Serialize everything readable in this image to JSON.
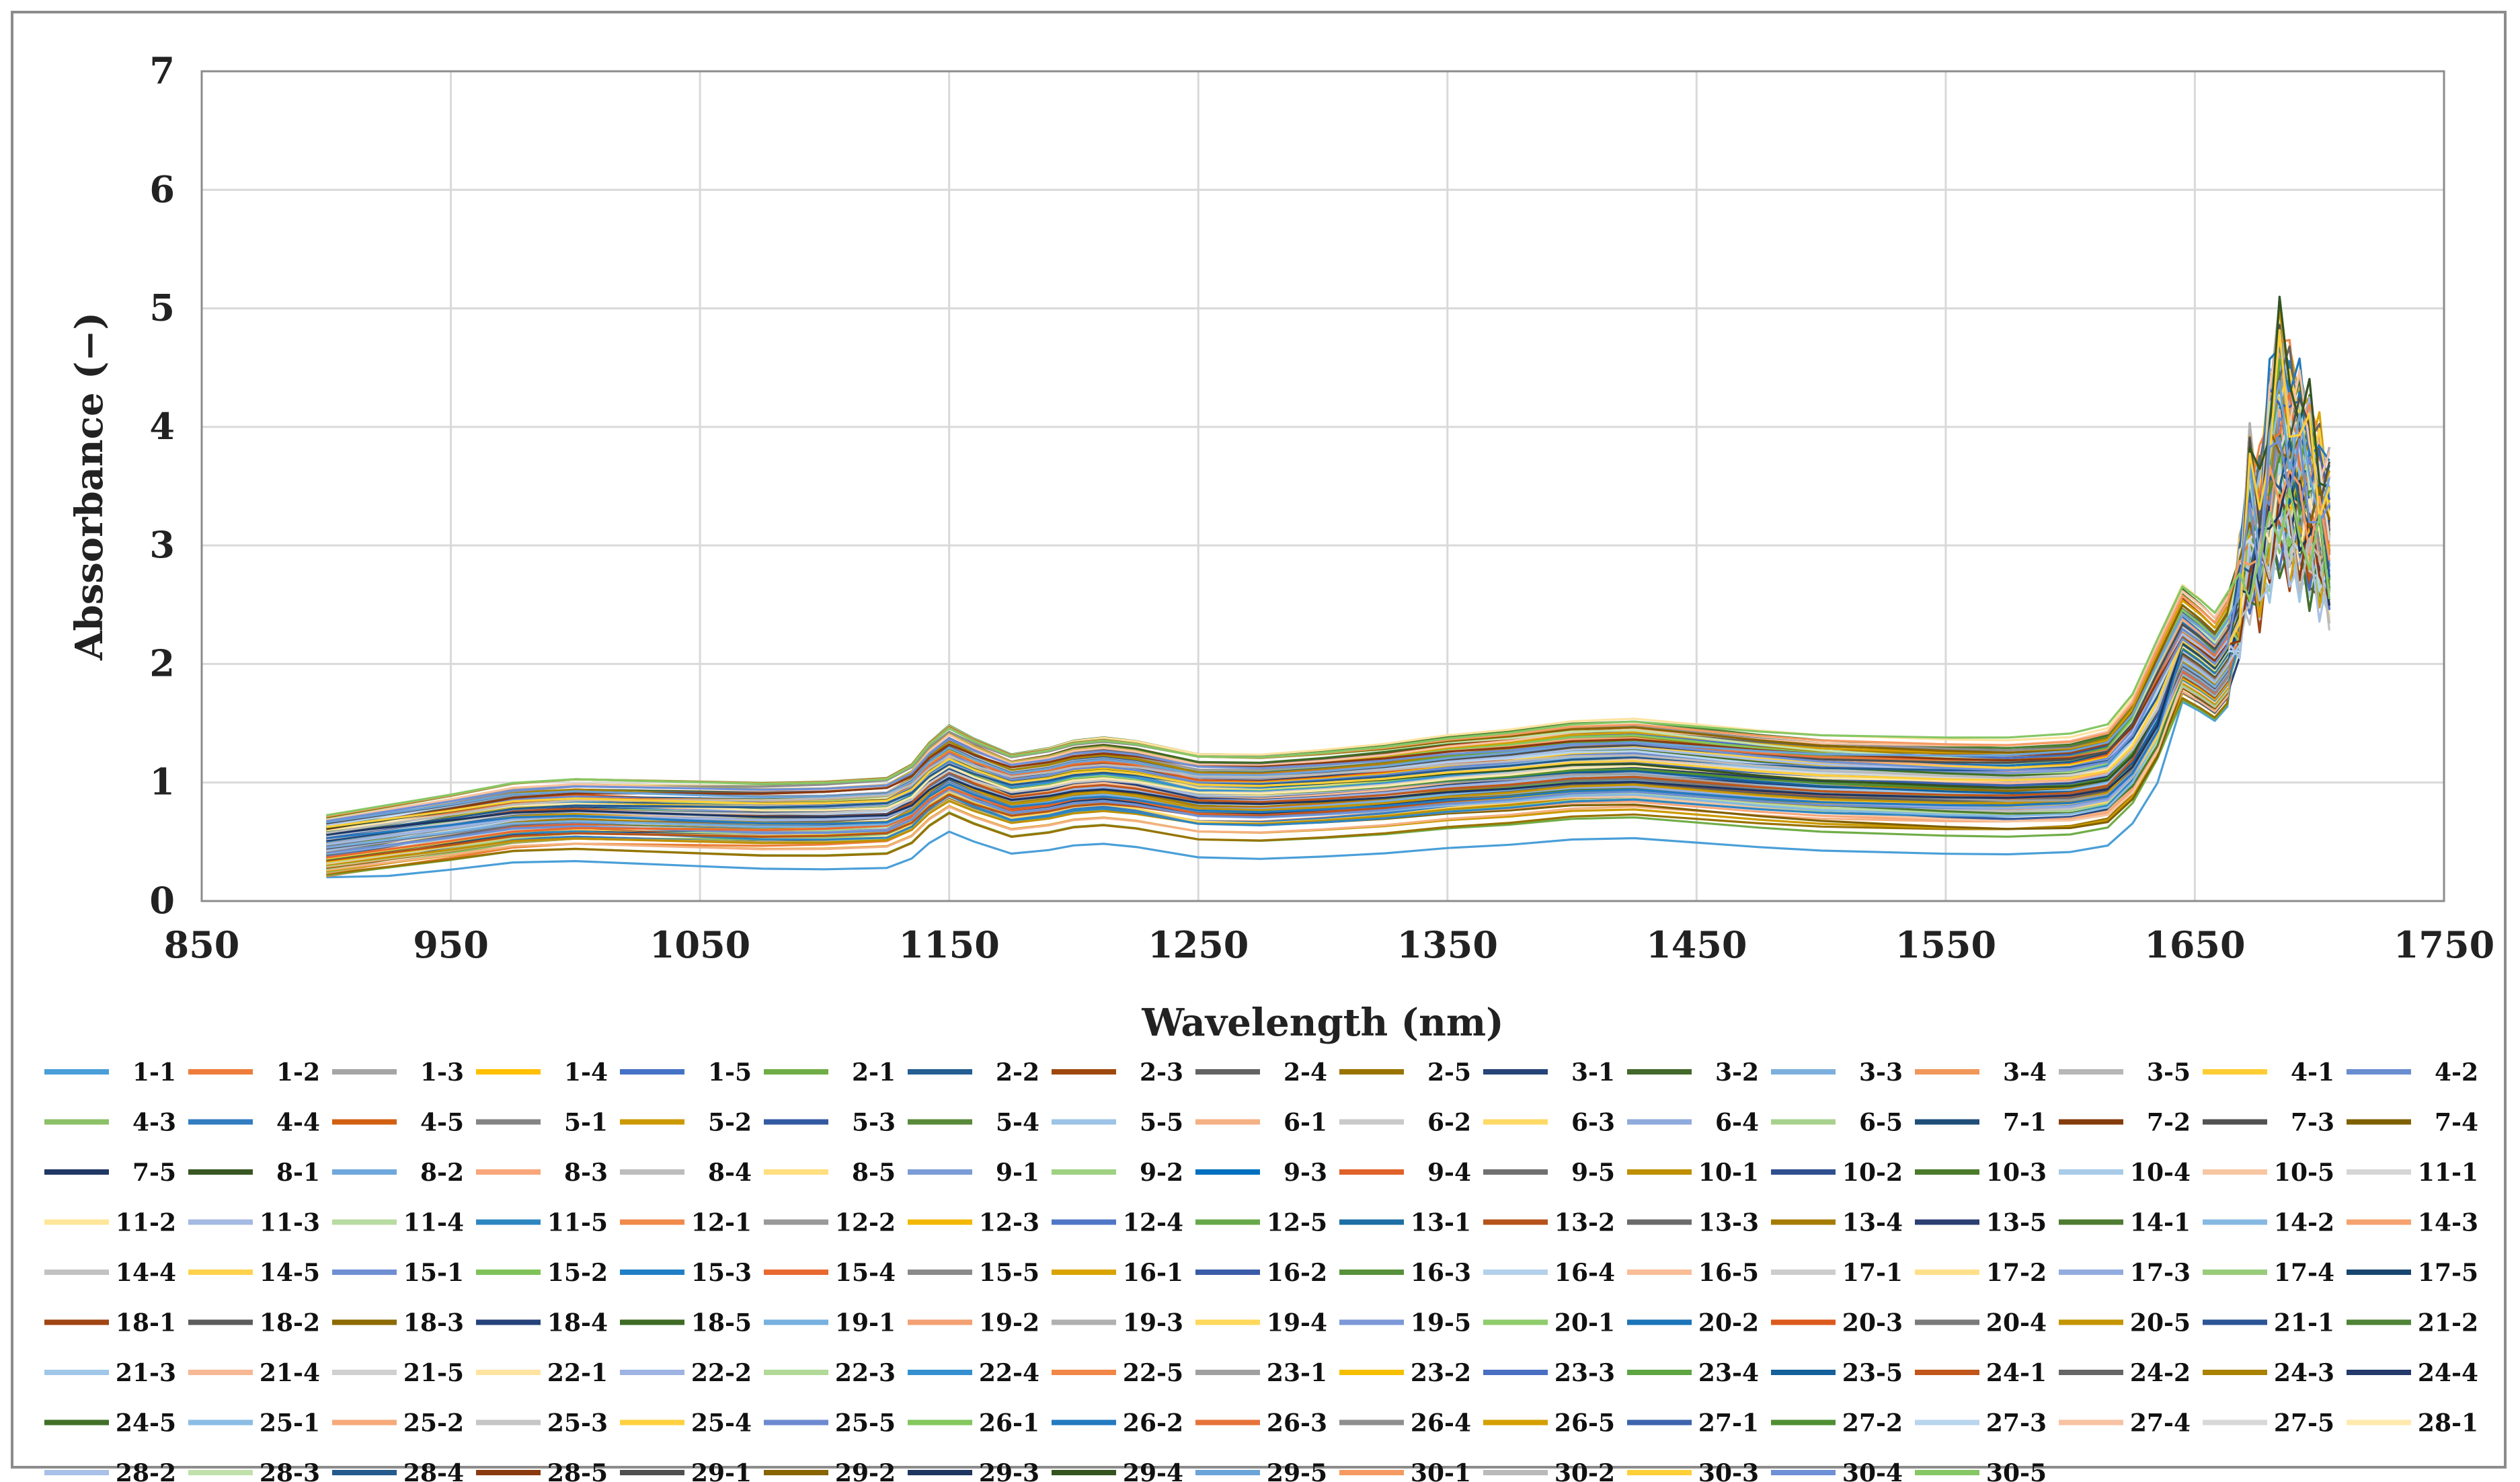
{
  "chart_data": {
    "type": "line",
    "title": "",
    "xlabel": "Wavelength (nm)",
    "ylabel": "Abssorbance (−)",
    "xlim": [
      850,
      1750
    ],
    "ylim": [
      0,
      7
    ],
    "xticks": [
      "850",
      "950",
      "1050",
      "1150",
      "1250",
      "1350",
      "1450",
      "1550",
      "1650",
      "1750"
    ],
    "yticks": [
      "0",
      "1",
      "2",
      "3",
      "4",
      "5",
      "6",
      "7"
    ],
    "grid": true,
    "legend_position": "bottom",
    "x": [
      900,
      925,
      950,
      975,
      1000,
      1025,
      1050,
      1075,
      1100,
      1125,
      1135,
      1142,
      1150,
      1160,
      1175,
      1190,
      1200,
      1212,
      1225,
      1250,
      1275,
      1300,
      1325,
      1350,
      1375,
      1400,
      1425,
      1450,
      1475,
      1500,
      1525,
      1550,
      1575,
      1600,
      1615,
      1625,
      1635,
      1645,
      1652,
      1658,
      1663,
      1668,
      1672,
      1676,
      1680,
      1684,
      1688,
      1692,
      1696,
      1700,
      1704
    ],
    "reference_profile": [
      0.5,
      0.57,
      0.64,
      0.72,
      0.74,
      0.72,
      0.7,
      0.68,
      0.68,
      0.7,
      0.8,
      0.96,
      1.08,
      0.98,
      0.86,
      0.9,
      0.95,
      0.97,
      0.94,
      0.84,
      0.83,
      0.86,
      0.9,
      0.96,
      1.0,
      1.06,
      1.08,
      1.04,
      1.0,
      0.97,
      0.96,
      0.95,
      0.95,
      0.98,
      1.05,
      1.28,
      1.7,
      2.1,
      2.0,
      1.9,
      2.05,
      2.5,
      3.0,
      2.9,
      3.3,
      3.6,
      3.4,
      3.3,
      3.2,
      3.05,
      2.9
    ],
    "series_names": [
      "1-1",
      "1-2",
      "1-3",
      "1-4",
      "1-5",
      "2-1",
      "2-2",
      "2-3",
      "2-4",
      "2-5",
      "3-1",
      "3-2",
      "3-3",
      "3-4",
      "3-5",
      "4-1",
      "4-2",
      "4-3",
      "4-4",
      "4-5",
      "5-1",
      "5-2",
      "5-3",
      "5-4",
      "5-5",
      "6-1",
      "6-2",
      "6-3",
      "6-4",
      "6-5",
      "7-1",
      "7-2",
      "7-3",
      "7-4",
      "7-5",
      "8-1",
      "8-2",
      "8-3",
      "8-4",
      "8-5",
      "9-1",
      "9-2",
      "9-3",
      "9-4",
      "9-5",
      "10-1",
      "10-2",
      "10-3",
      "10-4",
      "10-5",
      "11-1",
      "11-2",
      "11-3",
      "11-4",
      "11-5",
      "12-1",
      "12-2",
      "12-3",
      "12-4",
      "12-5",
      "13-1",
      "13-2",
      "13-3",
      "13-4",
      "13-5",
      "14-1",
      "14-2",
      "14-3",
      "14-4",
      "14-5",
      "15-1",
      "15-2",
      "15-3",
      "15-4",
      "15-5",
      "16-1",
      "16-2",
      "16-3",
      "16-4",
      "16-5",
      "17-1",
      "17-2",
      "17-3",
      "17-4",
      "17-5",
      "18-1",
      "18-2",
      "18-3",
      "18-4",
      "18-5",
      "19-1",
      "19-2",
      "19-3",
      "19-4",
      "19-5",
      "20-1",
      "20-2",
      "20-3",
      "20-4",
      "20-5",
      "21-1",
      "21-2",
      "21-3",
      "21-4",
      "21-5",
      "22-1",
      "22-2",
      "22-3",
      "22-4",
      "22-5",
      "23-1",
      "23-2",
      "23-3",
      "23-4",
      "23-5",
      "24-1",
      "24-2",
      "24-3",
      "24-4",
      "24-5",
      "25-1",
      "25-2",
      "25-3",
      "25-4",
      "25-5",
      "26-1",
      "26-2",
      "26-3",
      "26-4",
      "26-5",
      "27-1",
      "27-2",
      "27-3",
      "27-4",
      "27-5",
      "28-1",
      "28-2",
      "28-3",
      "28-4",
      "28-5",
      "29-1",
      "29-2",
      "29-3",
      "29-4",
      "29-5",
      "30-1",
      "30-2",
      "30-3",
      "30-4",
      "30-5"
    ],
    "series_colors": [
      "#4a9fd8",
      "#ee7d3b",
      "#a5a5a5",
      "#ffc000",
      "#4472c4",
      "#70ad47",
      "#255e91",
      "#9e480e",
      "#636363",
      "#997300",
      "#264478",
      "#43682b",
      "#7cafdd",
      "#f1975a",
      "#b7b7b7",
      "#ffcd33",
      "#698ed0",
      "#8cc168",
      "#327dc2",
      "#d26012",
      "#848484",
      "#cc9a00",
      "#335aa1",
      "#5a8a39",
      "#9dc3e6",
      "#f4b183",
      "#c9c9c9",
      "#ffd966",
      "#8faadc",
      "#a9d18e",
      "#1f4e79",
      "#843c0c",
      "#525252",
      "#7f6000",
      "#203864",
      "#385723",
      "#6fa8dc",
      "#f8a67a",
      "#bdbdbd",
      "#ffdf7f",
      "#7b9cd6",
      "#9fd183",
      "#0070c0",
      "#e0622a",
      "#707070",
      "#bf8f00",
      "#2f4f8f",
      "#4b7a2b",
      "#a8cbe8",
      "#f7c6a3",
      "#d6d6d6",
      "#ffe699",
      "#a4b9e3",
      "#b8dba1",
      "#2e86c1",
      "#f08a4b",
      "#999999",
      "#f2b800",
      "#5077c7",
      "#67a84a",
      "#1d6fa5",
      "#b5531b",
      "#6b6b6b",
      "#a67c00",
      "#2b3f73",
      "#4e7d31",
      "#86b9e2",
      "#f5a26e",
      "#c2c2c2",
      "#ffd24d",
      "#6f8fd3",
      "#7fc25a",
      "#1f7fc4",
      "#e8692f",
      "#8a8a8a",
      "#d9a400",
      "#3a5ca8",
      "#57913b",
      "#b3d1ea",
      "#f9bd97",
      "#cccccc",
      "#ffe08a",
      "#93ace0",
      "#99cc7a",
      "#17466f",
      "#a04513",
      "#5c5c5c",
      "#8c6a00",
      "#25427a",
      "#3e6b25",
      "#78b0df",
      "#f3a072",
      "#b0b0b0",
      "#ffd85c",
      "#7d98d8",
      "#8fcc6c",
      "#1b75b8",
      "#dc5a1c",
      "#7a7a7a",
      "#c49500",
      "#2c5596",
      "#4f8336",
      "#a0c7e8",
      "#f7b894",
      "#d0d0d0",
      "#ffe3a0",
      "#9db3e2",
      "#b1d998",
      "#3590cf",
      "#f28646",
      "#a0a0a0",
      "#f5bf00",
      "#4a6fc2",
      "#5ea542",
      "#14609a",
      "#c0561a",
      "#666666",
      "#a88200",
      "#233a6b",
      "#427029",
      "#8bbde4",
      "#f6aa7a",
      "#c6c6c6",
      "#ffd140",
      "#6d8ad0",
      "#83c75e",
      "#237ac0",
      "#e6733a",
      "#8f8f8f",
      "#d49f00",
      "#3c63ad",
      "#4f8f32",
      "#b8d5ee",
      "#f8c3a3",
      "#d8d8d8",
      "#ffe9ad",
      "#a9c0e8",
      "#c1e1ac",
      "#245b8c",
      "#8b3a0f",
      "#4f4f4f",
      "#886400",
      "#1e3560",
      "#34541f",
      "#6ba4d8",
      "#f59a62",
      "#bababa",
      "#ffcf3a",
      "#6f90d6",
      "#86c764"
    ]
  }
}
